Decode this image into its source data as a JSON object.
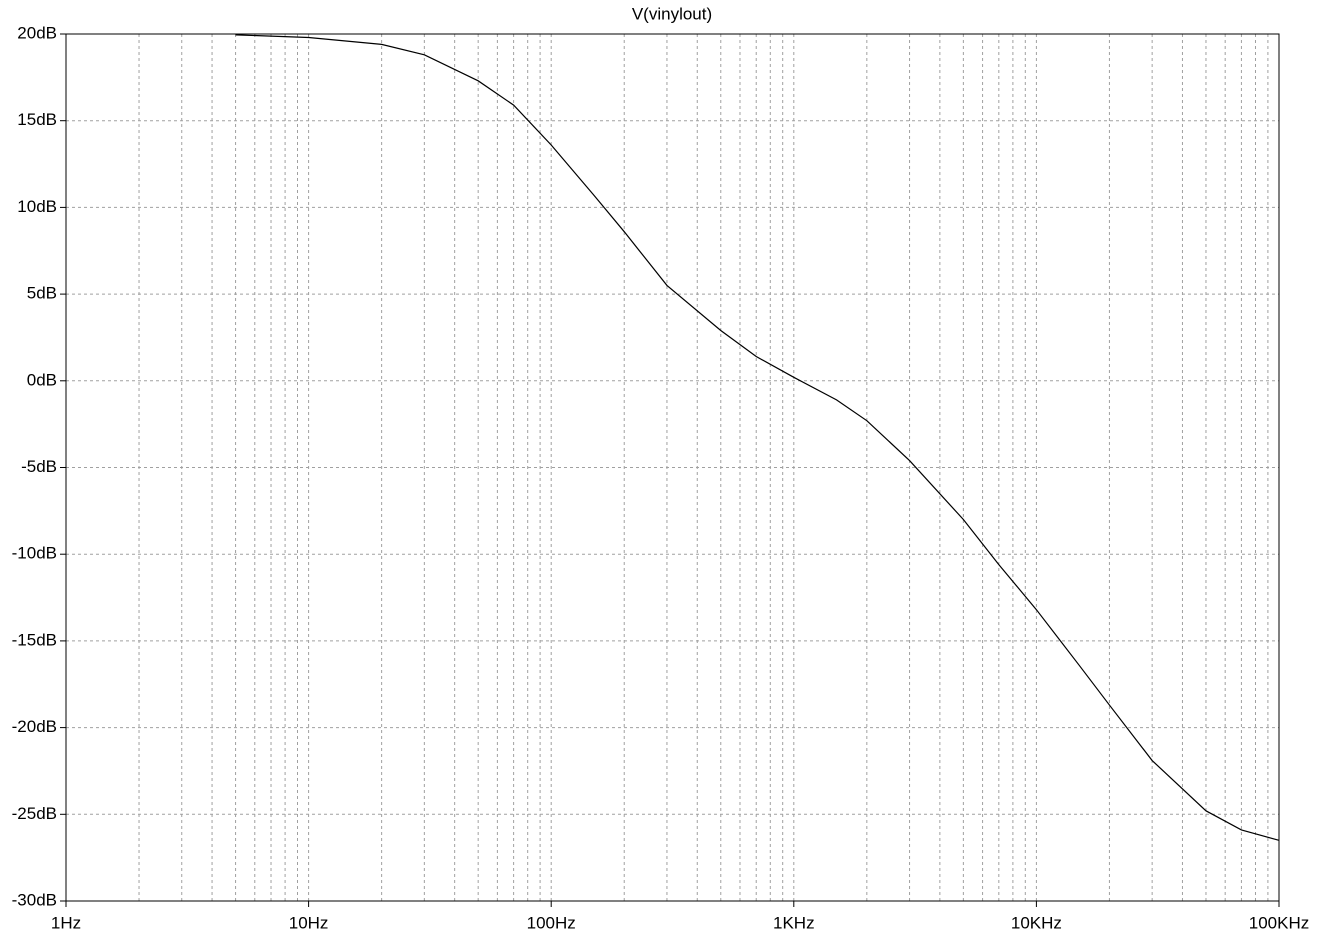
{
  "chart_data": {
    "type": "line",
    "title": "V(vinylout)",
    "x_scale": "log",
    "grid": true,
    "xlim": [
      1,
      100000
    ],
    "xticks": [
      {
        "value": 1,
        "label": "1Hz"
      },
      {
        "value": 10,
        "label": "10Hz"
      },
      {
        "value": 100,
        "label": "100Hz"
      },
      {
        "value": 1000,
        "label": "1KHz"
      },
      {
        "value": 10000,
        "label": "10KHz"
      },
      {
        "value": 100000,
        "label": "100KHz"
      }
    ],
    "ylim": [
      -30,
      20
    ],
    "yticks": [
      {
        "value": 20,
        "label": "20dB"
      },
      {
        "value": 15,
        "label": "15dB"
      },
      {
        "value": 10,
        "label": "10dB"
      },
      {
        "value": 5,
        "label": "5dB"
      },
      {
        "value": 0,
        "label": "0dB"
      },
      {
        "value": -5,
        "label": "-5dB"
      },
      {
        "value": -10,
        "label": "-10dB"
      },
      {
        "value": -15,
        "label": "-15dB"
      },
      {
        "value": -20,
        "label": "-20dB"
      },
      {
        "value": -25,
        "label": "-25dB"
      },
      {
        "value": -30,
        "label": "-30dB"
      }
    ],
    "x": [
      5,
      10,
      20,
      30,
      50,
      70,
      100,
      150,
      200,
      300,
      500,
      700,
      1000,
      1500,
      2000,
      3000,
      5000,
      7000,
      10000,
      15000,
      20000,
      30000,
      50000,
      70000,
      100000
    ],
    "series": [
      {
        "color": "#000000",
        "values": [
          19.95,
          19.8,
          19.4,
          18.8,
          17.3,
          15.9,
          13.6,
          10.7,
          8.6,
          5.5,
          2.9,
          1.4,
          0.2,
          -1.1,
          -2.3,
          -4.6,
          -8.0,
          -10.6,
          -13.2,
          -16.4,
          -18.7,
          -21.9,
          -24.8,
          -25.9,
          -26.5
        ]
      }
    ]
  }
}
